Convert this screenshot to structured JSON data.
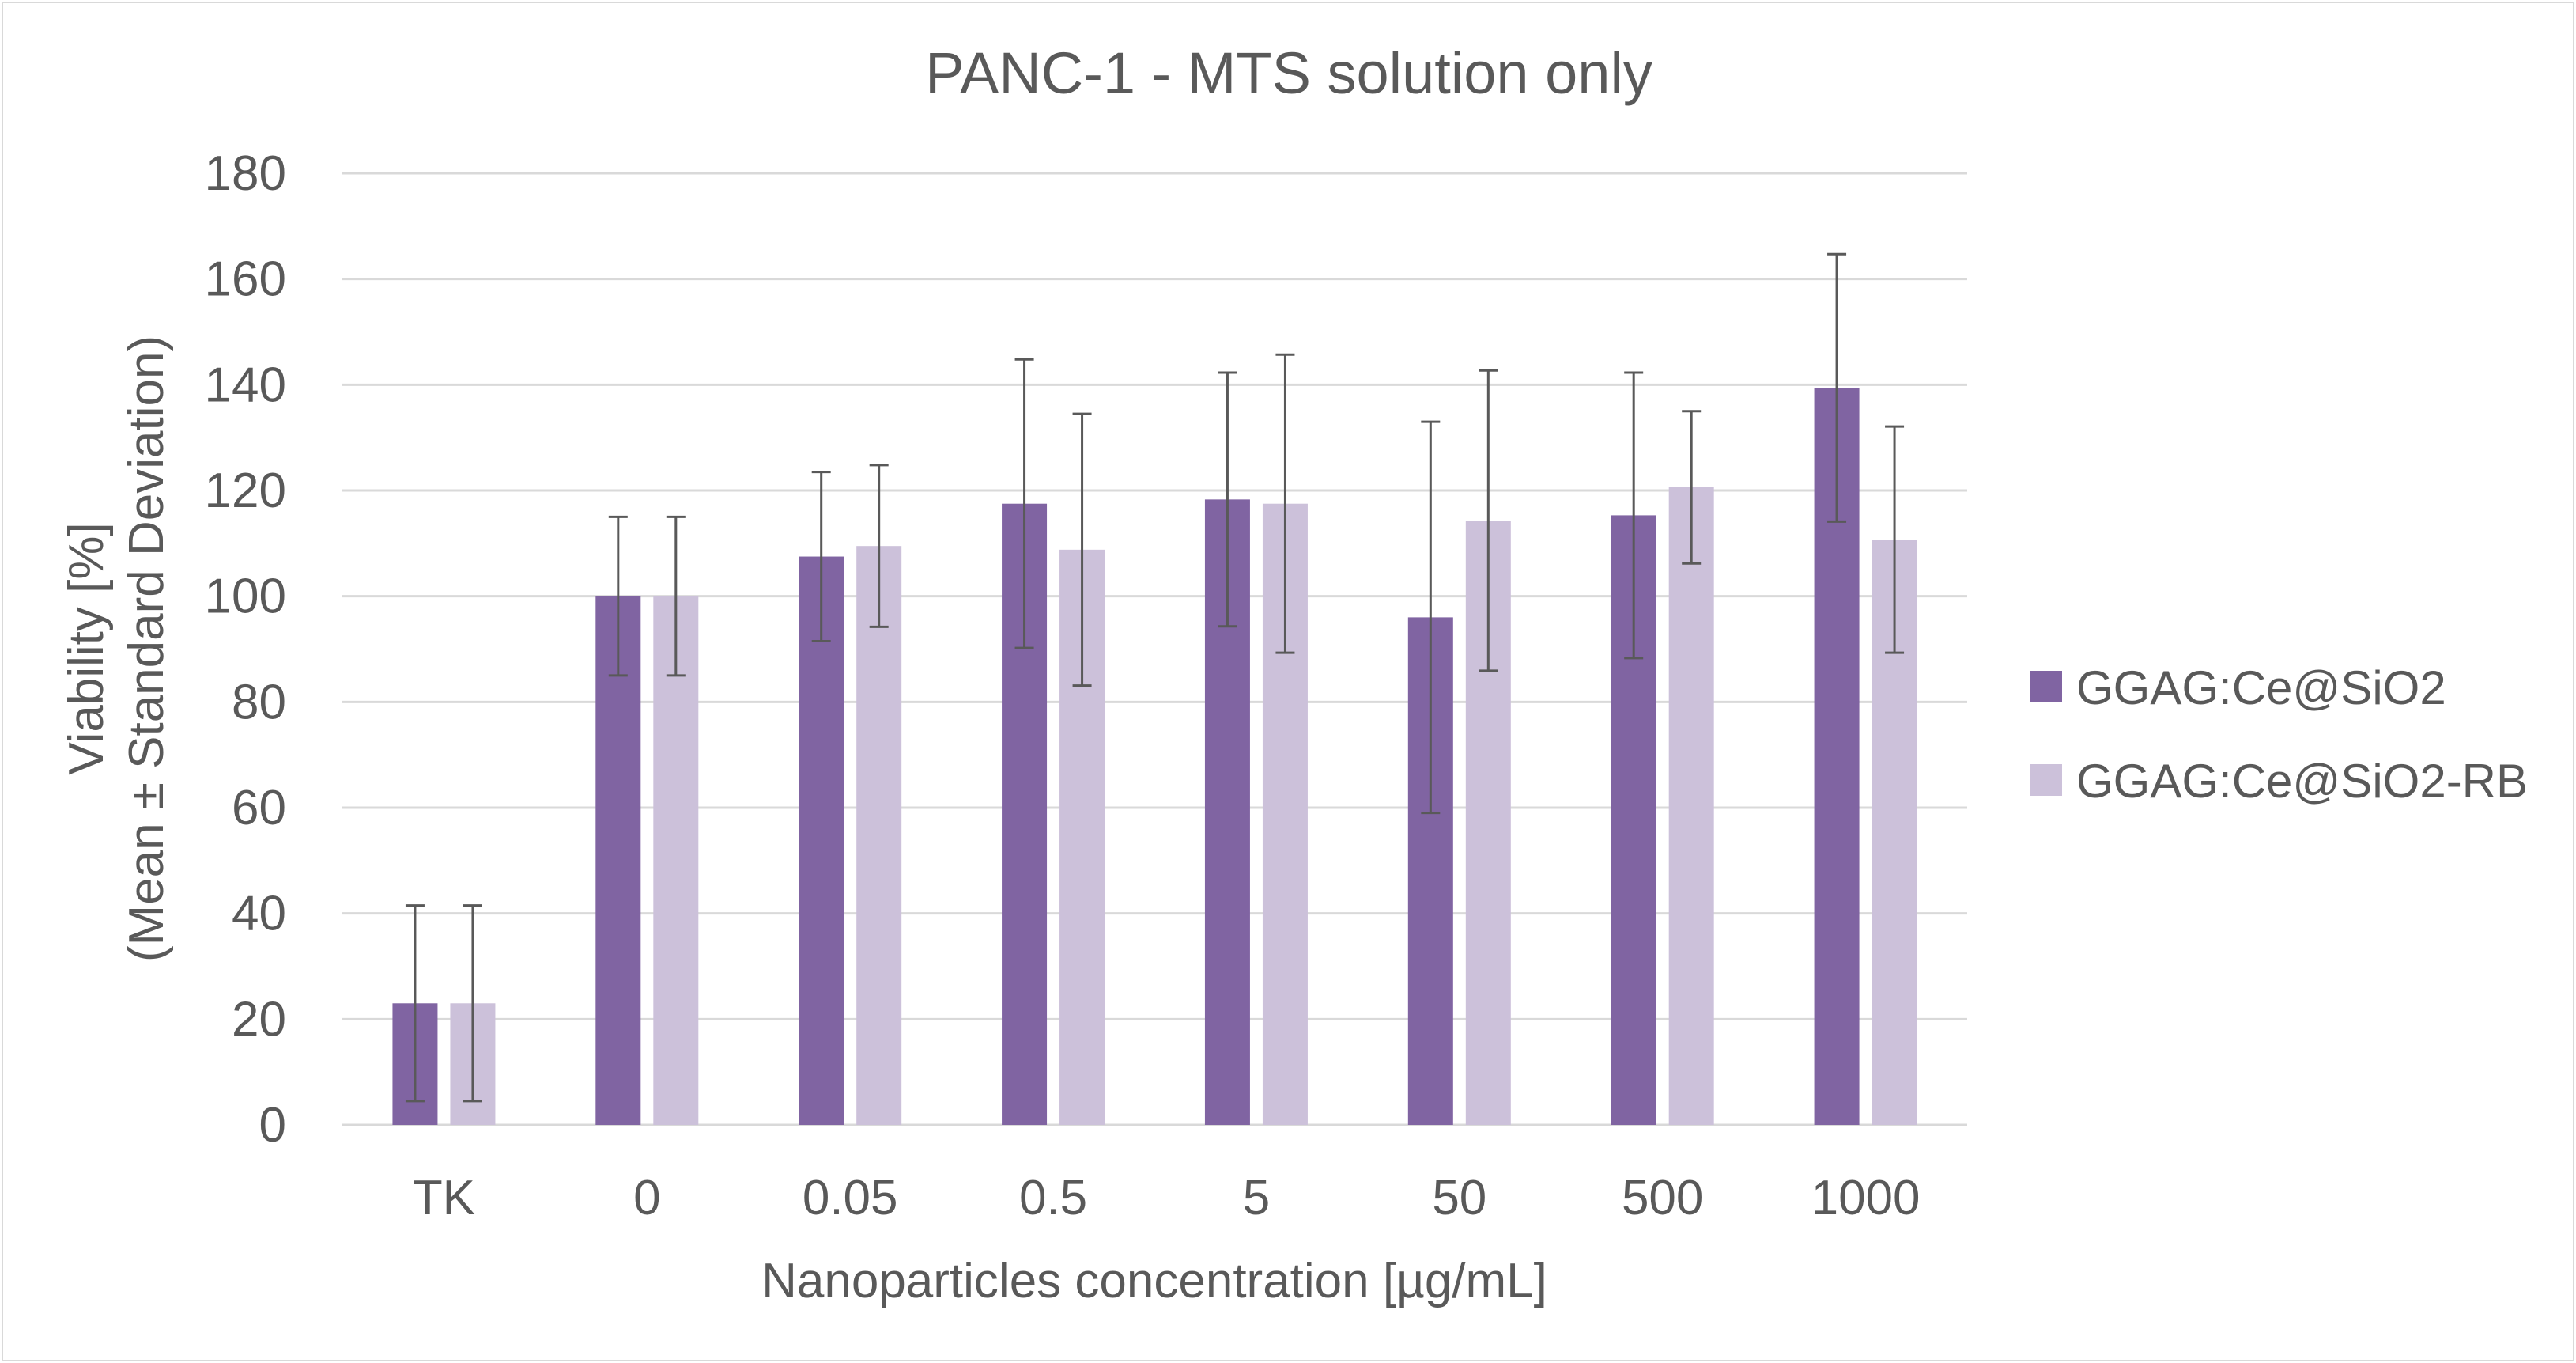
{
  "chart_data": {
    "type": "bar",
    "title": "PANC-1 - MTS solution only",
    "xlabel": "Nanoparticles concentration [µg/mL]",
    "ylabel_line1": "Viability [%]",
    "ylabel_line2": "(Mean ± Standard Deviation)",
    "ylim": [
      0,
      180
    ],
    "yticks": [
      0,
      20,
      40,
      60,
      80,
      100,
      120,
      140,
      160,
      180
    ],
    "grid": true,
    "legend_position": "right",
    "categories": [
      "TK",
      "0",
      "0.05",
      "0.5",
      "5",
      "50",
      "500",
      "1000"
    ],
    "series": [
      {
        "name": "GGAG:Ce@SiO2",
        "color": "#8064a2",
        "values": [
          23,
          100,
          107.5,
          117.5,
          118.3,
          96,
          115.3,
          139.4
        ],
        "error": [
          18.5,
          15,
          16,
          27.3,
          24,
          37,
          27,
          25.3
        ]
      },
      {
        "name": "GGAG:Ce@SiO2-RB",
        "color": "#ccc1da",
        "values": [
          23,
          100,
          109.5,
          108.8,
          117.5,
          114.3,
          120.6,
          110.7
        ],
        "error": [
          18.5,
          15,
          15.3,
          25.7,
          28.2,
          28.4,
          14.4,
          21.4
        ]
      }
    ]
  }
}
